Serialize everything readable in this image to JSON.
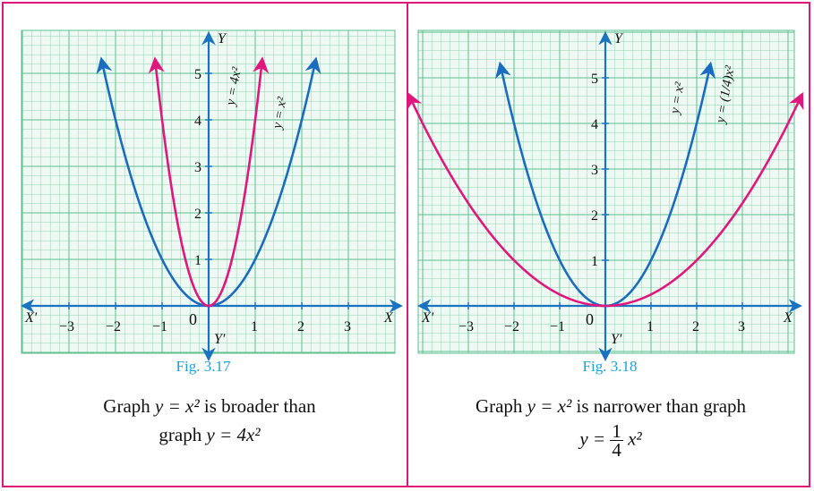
{
  "colors": {
    "grid": "#8fd3b0",
    "grid_major": "#5fbf8f",
    "axis": "#1a73c0",
    "blue_curve": "#1a6cc0",
    "pink_curve": "#e0177d",
    "caption_blue": "#1aa3d9"
  },
  "chart_data": [
    {
      "type": "line",
      "x_axis_label": "X",
      "x_axis_neg_label": "X′",
      "y_axis_label": "Y",
      "y_axis_neg_label": "Y′",
      "x_ticks": [
        "−3",
        "−2",
        "−1",
        "0",
        "1",
        "2",
        "3"
      ],
      "y_ticks": [
        "1",
        "2",
        "3",
        "4",
        "5"
      ],
      "xlim": [
        -3.9,
        3.9
      ],
      "ylim": [
        -0.9,
        5.8
      ],
      "grid": true,
      "series": [
        {
          "name": "y = x²",
          "color": "blue",
          "formula_coef": 1,
          "x": [
            -2.3,
            2.3
          ],
          "label_at": [
            1.55,
            3.8
          ]
        },
        {
          "name": "y = 4x²",
          "color": "pink",
          "formula_coef": 4,
          "x": [
            -1.15,
            1.15
          ],
          "label_at": [
            0.55,
            4.3
          ]
        }
      ],
      "fig_label": "Fig. 3.17",
      "caption_line1_pre": "Graph",
      "caption_line1_eq": "y = x²",
      "caption_line1_post": "is broader than",
      "caption_line2_pre": "graph",
      "caption_line2_eq": "y = 4x²"
    },
    {
      "type": "line",
      "x_axis_label": "X",
      "x_axis_neg_label": "X′",
      "y_axis_label": "Y",
      "y_axis_neg_label": "Y′",
      "x_ticks": [
        "−3",
        "−2",
        "−1",
        "0",
        "1",
        "2",
        "3"
      ],
      "y_ticks": [
        "1",
        "2",
        "3",
        "4",
        "5"
      ],
      "xlim": [
        -3.9,
        3.9
      ],
      "ylim": [
        -0.9,
        5.8
      ],
      "grid": true,
      "series": [
        {
          "name": "y = x²",
          "color": "blue",
          "formula_coef": 1,
          "x": [
            -2.3,
            2.3
          ],
          "label_at": [
            1.6,
            4.2
          ]
        },
        {
          "name": "y = (1/4)x²",
          "color": "pink",
          "formula_coef": 0.25,
          "x": [
            -4.3,
            4.3
          ],
          "label_at": [
            2.6,
            4.0
          ]
        }
      ],
      "fig_label": "Fig. 3.18",
      "caption_line1_pre": "Graph",
      "caption_line1_eq": "y = x²",
      "caption_line1_post": "is narrower than graph",
      "caption_line2_eq_lhs": "y =",
      "caption_line2_num": "1",
      "caption_line2_den": "4",
      "caption_line2_eq_rhs": "x²"
    }
  ]
}
